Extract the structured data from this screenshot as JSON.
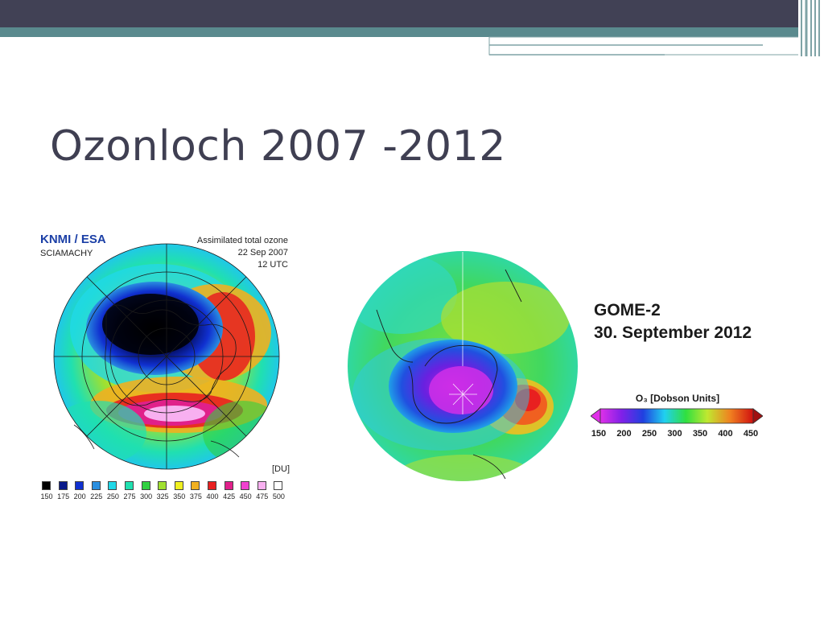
{
  "slide": {
    "title": "Ozonloch 2007 -2012"
  },
  "image_2007": {
    "brand": "KNMI / ESA",
    "instrument": "SCIAMACHY",
    "caption_line1": "Assimilated total ozone",
    "caption_line2": "22 Sep 2007",
    "caption_line3": "12 UTC",
    "unit": "[DU]",
    "legend": [
      {
        "label": "150",
        "color": "#000000"
      },
      {
        "label": "175",
        "color": "#0a1a8a"
      },
      {
        "label": "200",
        "color": "#1030d0"
      },
      {
        "label": "225",
        "color": "#2a8fe0"
      },
      {
        "label": "250",
        "color": "#20d8e8"
      },
      {
        "label": "275",
        "color": "#20e0b0"
      },
      {
        "label": "300",
        "color": "#30d040"
      },
      {
        "label": "325",
        "color": "#a0e030"
      },
      {
        "label": "350",
        "color": "#f0f020"
      },
      {
        "label": "375",
        "color": "#f0b020"
      },
      {
        "label": "400",
        "color": "#e82020"
      },
      {
        "label": "425",
        "color": "#e0208a"
      },
      {
        "label": "450",
        "color": "#f040d0"
      },
      {
        "label": "475",
        "color": "#f8b0f0"
      },
      {
        "label": "500",
        "color": "#ffffff"
      }
    ]
  },
  "image_2012": {
    "title_line1": "GOME-2",
    "title_line2": "30. September 2012",
    "colorbar_title": "O₃ [Dobson Units]",
    "colorbar_ticks": [
      "150",
      "200",
      "250",
      "300",
      "350",
      "400",
      "450"
    ]
  }
}
